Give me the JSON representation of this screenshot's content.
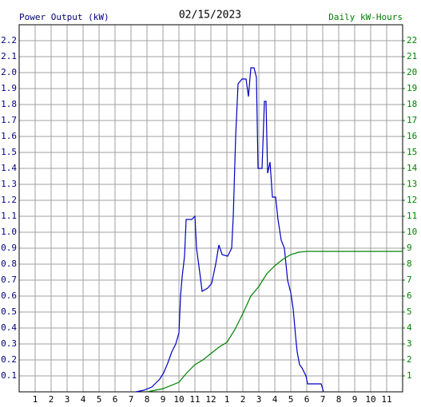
{
  "chart_data": {
    "type": "line",
    "title": "02/15/2023",
    "y_label": "Power Output (kW)",
    "y2_label": "Daily kW-Hours",
    "xlim": [
      0,
      24
    ],
    "xticks": [
      1,
      2,
      3,
      4,
      5,
      6,
      7,
      8,
      9,
      10,
      11,
      12,
      {
        "value": 13,
        "label": "1"
      },
      {
        "value": 14,
        "label": "2"
      },
      {
        "value": 15,
        "label": "3"
      },
      {
        "value": 16,
        "label": "4"
      },
      {
        "value": 17,
        "label": "5"
      },
      {
        "value": 18,
        "label": "6"
      },
      {
        "value": 19,
        "label": "7"
      },
      {
        "value": 20,
        "label": "8"
      },
      {
        "value": 21,
        "label": "9"
      },
      {
        "value": 22,
        "label": "10"
      },
      {
        "value": 23,
        "label": "11"
      }
    ],
    "ylim": [
      0,
      2.3
    ],
    "yticks": [
      0.1,
      0.2,
      0.3,
      0.4,
      0.5,
      0.6,
      0.7,
      0.8,
      0.9,
      {
        "value": 1,
        "label": "1.0"
      },
      1.1,
      1.2,
      1.3,
      1.4,
      1.5,
      1.6,
      1.7,
      1.8,
      1.9,
      {
        "value": 2,
        "label": "2.0"
      },
      2.1,
      2.2
    ],
    "y2lim": [
      0,
      23
    ],
    "y2ticks": [
      1,
      2,
      3,
      4,
      5,
      6,
      7,
      8,
      9,
      10,
      11,
      12,
      13,
      14,
      15,
      16,
      17,
      18,
      19,
      20,
      21,
      22
    ],
    "grid": true,
    "y_label_color": "#000080",
    "y2_label_color": "#008000",
    "series": [
      {
        "color": "#0000c0",
        "x": [
          7.3,
          7.8,
          8.3,
          8.8,
          9.05,
          9.3,
          9.55,
          9.8,
          10.0,
          10.1,
          10.2,
          10.35,
          10.45,
          10.8,
          11.0,
          11.1,
          11.3,
          11.45,
          11.8,
          12.05,
          12.3,
          12.5,
          12.7,
          13.05,
          13.3,
          13.4,
          13.55,
          13.7,
          13.95,
          14.2,
          14.35,
          14.5,
          14.7,
          14.85,
          14.95,
          15.2,
          15.35,
          15.45,
          15.55,
          15.7,
          15.85,
          16.05,
          16.2,
          16.4,
          16.6,
          16.8,
          17.0,
          17.15,
          17.3,
          17.4,
          17.55,
          17.7,
          17.95,
          18.05,
          18.55,
          18.9,
          19.05
        ],
        "values": [
          0,
          0.01,
          0.03,
          0.08,
          0.12,
          0.18,
          0.25,
          0.3,
          0.37,
          0.6,
          0.72,
          0.85,
          1.08,
          1.08,
          1.1,
          0.9,
          0.75,
          0.63,
          0.65,
          0.68,
          0.8,
          0.92,
          0.86,
          0.85,
          0.9,
          1.1,
          1.6,
          1.93,
          1.96,
          1.96,
          1.85,
          2.03,
          2.03,
          1.97,
          1.4,
          1.4,
          1.82,
          1.82,
          1.37,
          1.44,
          1.22,
          1.22,
          1.08,
          0.95,
          0.9,
          0.7,
          0.62,
          0.52,
          0.35,
          0.25,
          0.17,
          0.15,
          0.1,
          0.05,
          0.05,
          0.05,
          0
        ]
      },
      {
        "color": "#008000",
        "axis": "y2",
        "x": [
          8.0,
          9.0,
          10.0,
          10.5,
          11.0,
          11.5,
          12.0,
          12.5,
          13.0,
          13.5,
          14.0,
          14.5,
          15.0,
          15.5,
          16.0,
          16.5,
          17.0,
          17.5,
          18.0,
          24
        ],
        "values": [
          0,
          0.2,
          0.6,
          1.2,
          1.7,
          2.0,
          2.4,
          2.8,
          3.1,
          3.9,
          4.9,
          6.0,
          6.6,
          7.4,
          7.9,
          8.3,
          8.6,
          8.75,
          8.8,
          8.8
        ]
      }
    ]
  }
}
